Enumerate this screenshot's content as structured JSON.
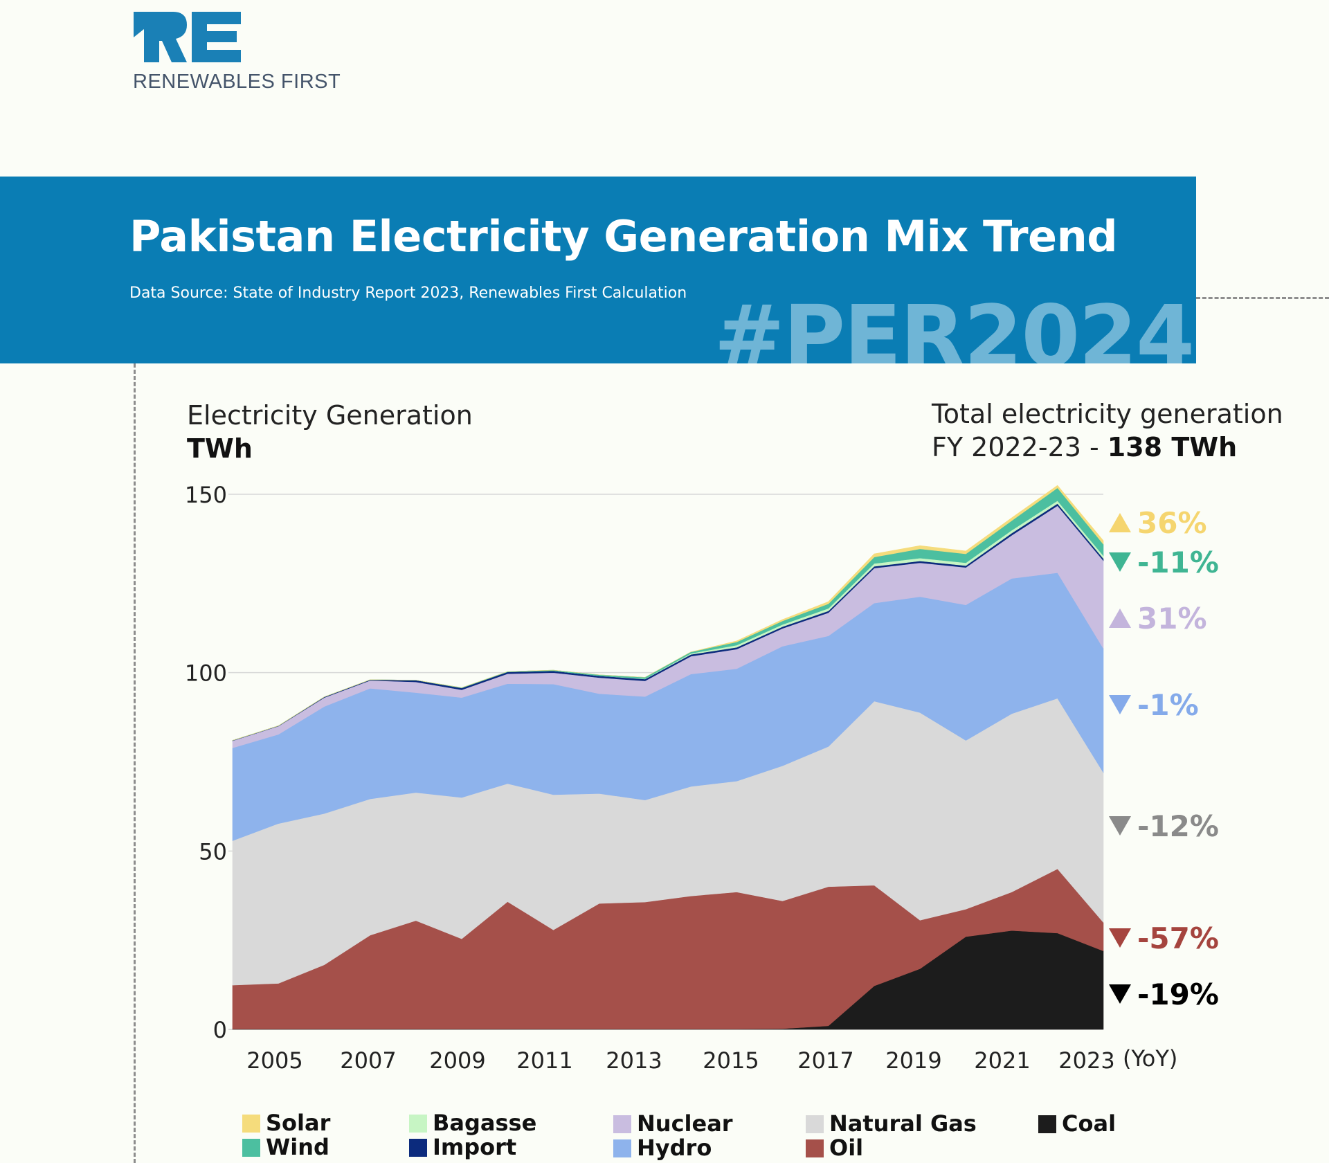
{
  "logo": {
    "mark": "RE",
    "tagline": "RENEWABLES FIRST"
  },
  "banner": {
    "title": "Pakistan Electricity Generation Mix Trend",
    "source": "Data Source: State of Industry Report 2023, Renewables First Calculation",
    "hashtag": "#PER2024"
  },
  "axis_header": {
    "label": "Electricity Generation",
    "unit": "TWh"
  },
  "total": {
    "line1": "Total electricity generation",
    "line2_prefix": "FY 2022-23 - ",
    "line2_value": "138 TWh"
  },
  "colors": {
    "Coal": "#1c1c1c",
    "Oil": "#a5504a",
    "Natural Gas": "#d9d9d9",
    "Hydro": "#8eb3ec",
    "Nuclear": "#c9bde0",
    "Import": "#0c2b7d",
    "Bagasse": "#c7f5c4",
    "Wind": "#4cbfa0",
    "Solar": "#f5dc7c"
  },
  "chart_data": {
    "type": "area",
    "stacked": true,
    "ylabel": "Electricity Generation TWh",
    "ylim": [
      0,
      150
    ],
    "yticks": [
      0,
      50,
      100,
      150
    ],
    "x": [
      2004,
      2005,
      2006,
      2007,
      2008,
      2009,
      2010,
      2011,
      2012,
      2013,
      2014,
      2015,
      2016,
      2017,
      2018,
      2019,
      2020,
      2021,
      2022,
      2023
    ],
    "xtick_labels": [
      "2005",
      "2007",
      "2009",
      "2011",
      "2013",
      "2015",
      "2017",
      "2019",
      "2021",
      "2023"
    ],
    "xtick_suffix": "(YoY)",
    "series": [
      {
        "name": "Coal",
        "values": [
          0.1,
          0.1,
          0.1,
          0.1,
          0.1,
          0.1,
          0.1,
          0.1,
          0.1,
          0.1,
          0.1,
          0.1,
          0.2,
          1.0,
          12.2,
          17.0,
          26.0,
          27.7,
          27.0,
          22.0
        ]
      },
      {
        "name": "Oil",
        "values": [
          12.3,
          12.8,
          18.0,
          26.3,
          30.4,
          25.3,
          35.7,
          27.8,
          35.2,
          35.6,
          37.3,
          38.4,
          35.8,
          39.0,
          28.2,
          13.6,
          7.7,
          10.8,
          18.0,
          8.0
        ]
      },
      {
        "name": "Natural Gas",
        "values": [
          40.5,
          44.8,
          42.4,
          38.2,
          35.9,
          39.6,
          33.1,
          37.9,
          30.8,
          28.6,
          30.7,
          31.1,
          37.9,
          39.3,
          51.6,
          58.2,
          47.3,
          50.0,
          47.8,
          42.0
        ]
      },
      {
        "name": "Hydro",
        "values": [
          26.0,
          25.0,
          30.0,
          31.0,
          28.0,
          28.0,
          28.0,
          31.0,
          28.0,
          29.0,
          31.5,
          31.5,
          33.5,
          31.0,
          27.5,
          32.5,
          38.0,
          37.9,
          35.2,
          34.8
        ]
      },
      {
        "name": "Nuclear",
        "values": [
          2.0,
          2.3,
          2.5,
          2.2,
          3.0,
          2.2,
          2.8,
          3.2,
          4.5,
          4.4,
          5.0,
          5.5,
          5.0,
          6.5,
          9.8,
          9.5,
          10.5,
          12.1,
          18.8,
          24.6
        ]
      },
      {
        "name": "Import",
        "values": [
          0.1,
          0.1,
          0.2,
          0.2,
          0.5,
          0.5,
          0.5,
          0.5,
          0.5,
          0.5,
          0.5,
          0.5,
          0.5,
          0.5,
          0.5,
          0.5,
          0.5,
          0.6,
          0.6,
          0.6
        ]
      },
      {
        "name": "Bagasse",
        "values": [
          0.0,
          0.0,
          0.0,
          0.0,
          0.0,
          0.0,
          0.0,
          0.0,
          0.0,
          0.1,
          0.3,
          0.6,
          0.6,
          0.7,
          0.8,
          0.8,
          0.8,
          0.8,
          0.8,
          0.8
        ]
      },
      {
        "name": "Wind",
        "values": [
          0.0,
          0.0,
          0.0,
          0.0,
          0.0,
          0.1,
          0.1,
          0.2,
          0.3,
          0.4,
          0.4,
          0.9,
          1.0,
          1.3,
          1.8,
          2.6,
          2.5,
          2.7,
          3.6,
          3.2
        ]
      },
      {
        "name": "Solar",
        "values": [
          0.0,
          0.0,
          0.0,
          0.0,
          0.0,
          0.0,
          0.0,
          0.0,
          0.0,
          0.0,
          0.0,
          0.3,
          0.4,
          0.6,
          0.9,
          0.9,
          0.8,
          0.8,
          0.7,
          1.0
        ]
      }
    ],
    "yoy_labels": [
      {
        "series": "Solar",
        "direction": "up",
        "text": "36%",
        "color": "#f5d56f"
      },
      {
        "series": "Wind",
        "direction": "down",
        "text": "-11%",
        "color": "#3fb593"
      },
      {
        "series": "Nuclear",
        "direction": "up",
        "text": "31%",
        "color": "#c3b4dc"
      },
      {
        "series": "Hydro",
        "direction": "down",
        "text": "-1%",
        "color": "#84aaea"
      },
      {
        "series": "Natural Gas",
        "direction": "down",
        "text": "-12%",
        "color": "#8a8a8a"
      },
      {
        "series": "Oil",
        "direction": "down",
        "text": "-57%",
        "color": "#a5443e"
      },
      {
        "series": "Coal",
        "direction": "down",
        "text": "-19%",
        "color": "#000000"
      }
    ],
    "legend": [
      "Solar",
      "Wind",
      "Bagasse",
      "Import",
      "Nuclear",
      "Hydro",
      "Natural Gas",
      "Oil",
      "Coal"
    ],
    "grid": true
  }
}
